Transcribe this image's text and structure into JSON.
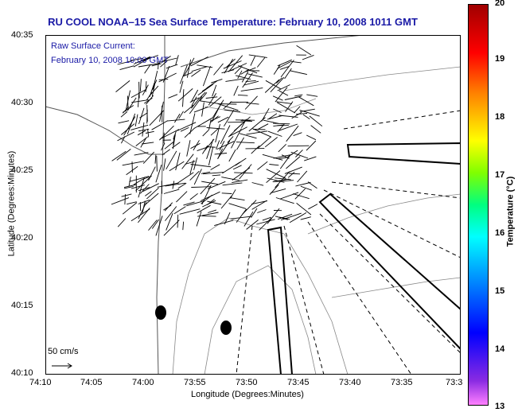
{
  "title": "RU COOL  NOAA–15  Sea Surface Temperature:  February 10, 2008 1011 GMT",
  "legend": {
    "line1": "Raw Surface Current:",
    "line2": "February 10, 2008 10:00 GMT"
  },
  "scale_label": "50 cm/s",
  "axes": {
    "xlabel": "Longitude (Degrees:Minutes)",
    "ylabel": "Latitude (Degrees:Minutes)",
    "yticks": [
      "40:35",
      "40:30",
      "40:25",
      "40:20",
      "40:15",
      "40:10"
    ],
    "xticks": [
      "74:10",
      "74:05",
      "74:00",
      "73:55",
      "73:50",
      "73:45",
      "73:40",
      "73:35",
      "73:3"
    ]
  },
  "colorbar": {
    "label": "Temperature (°C)",
    "ticks": [
      "20",
      "19",
      "18",
      "17",
      "16",
      "15",
      "14",
      "13"
    ]
  },
  "colors": {
    "title": "#1a1aa6",
    "land": "#ffffff",
    "contour": "#888888"
  }
}
